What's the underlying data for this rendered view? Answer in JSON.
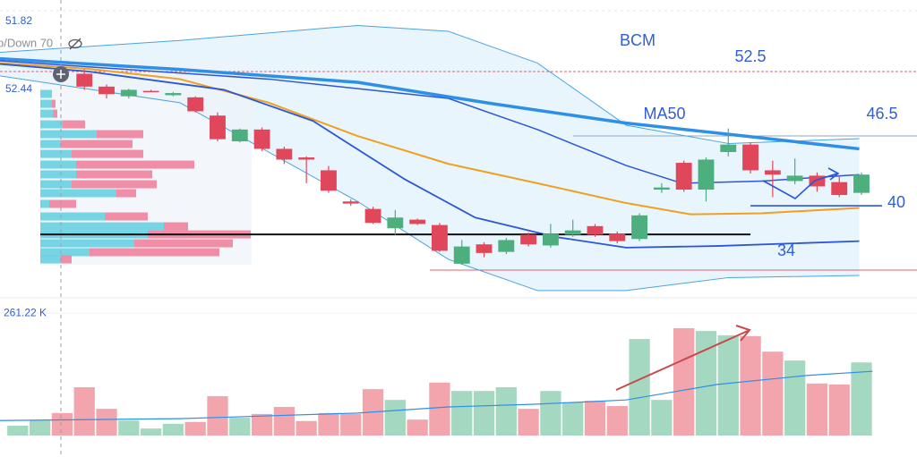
{
  "chart_data": [
    {
      "type": "candlestick",
      "xlim": [
        -3.8,
        37.5
      ],
      "ylim": [
        31.67,
        59.17
      ],
      "up_color": "#4caf7d",
      "down_color": "#e0475a",
      "open": [
        52.3,
        51.1,
        50.2,
        50.7,
        50.3,
        50.1,
        48.4,
        46.0,
        47.1,
        45.3,
        44.5,
        43.3,
        40.4,
        39.7,
        37.9,
        38.7,
        38.2,
        34.6,
        36.4,
        35.7,
        37.3,
        36.3,
        37.3,
        38.1,
        37.4,
        36.9,
        41.5,
        44.0,
        41.5,
        45.0,
        45.7,
        43.3,
        42.3,
        42.8,
        42.2,
        41.2
      ],
      "high": [
        52.7,
        51.3,
        50.9,
        50.8,
        50.6,
        50.2,
        48.7,
        47.2,
        47.3,
        45.5,
        44.6,
        43.7,
        40.6,
        39.9,
        39.6,
        38.8,
        38.4,
        36.8,
        36.6,
        37.0,
        37.5,
        38.3,
        38.7,
        38.3,
        37.6,
        39.3,
        42.1,
        44.2,
        44.5,
        47.2,
        45.9,
        44.2,
        44.4,
        43.1,
        42.8,
        43.1
      ],
      "low": [
        50.8,
        50.0,
        50.0,
        50.6,
        50.2,
        48.7,
        46.0,
        45.9,
        45.1,
        43.9,
        42.1,
        41.2,
        40.0,
        38.3,
        37.3,
        38.2,
        35.7,
        34.5,
        35.2,
        35.5,
        36.2,
        36.1,
        37.1,
        37.1,
        36.5,
        36.7,
        41.2,
        41.3,
        40.4,
        44.6,
        43.0,
        40.8,
        42.0,
        41.3,
        40.8,
        41.0
      ],
      "close": [
        51.1,
        50.4,
        50.8,
        50.6,
        50.5,
        48.8,
        46.2,
        47.1,
        45.3,
        44.3,
        44.3,
        41.4,
        40.2,
        38.4,
        38.9,
        38.3,
        35.8,
        36.2,
        35.6,
        36.8,
        36.4,
        37.4,
        37.7,
        37.3,
        36.7,
        39.1,
        41.7,
        41.5,
        44.3,
        45.7,
        43.3,
        42.9,
        42.8,
        41.8,
        41.0,
        42.9
      ],
      "overlays": [
        {
          "color": "#4aa3e0",
          "width": 1,
          "x": [
            -3.8,
            4.3,
            12.3,
            16.4,
            20.4,
            24.4,
            29.0,
            34.9
          ],
          "values": [
            54.3,
            55.4,
            56.8,
            56.25,
            53.3,
            47.5,
            45.8,
            46.25
          ]
        },
        {
          "color": "#4aa3e0",
          "width": 1,
          "x": [
            -3.8,
            4.3,
            12.3,
            16.4,
            20.4,
            24.4,
            29.0,
            34.9
          ],
          "values": [
            52.1,
            49.6,
            40.4,
            35.0,
            32.1,
            32.1,
            33.3,
            33.5
          ]
        },
        {
          "color": "#f0a020",
          "width": 2,
          "x": [
            -3.8,
            0.2,
            4.3,
            8.3,
            12.3,
            16.4,
            20.4,
            24.4,
            27.3,
            30.5,
            34.9
          ],
          "values": [
            53.3,
            52.75,
            51.8,
            49.6,
            46.5,
            43.9,
            42.1,
            40.25,
            39.2,
            39.3,
            39.8
          ]
        },
        {
          "color": "#2b56d8",
          "width": 1.8,
          "x": [
            -3.8,
            0.2,
            6.3,
            10.3,
            14.4,
            17.6,
            21.2,
            24.4,
            28.5,
            34.9
          ],
          "values": [
            53.2,
            52.5,
            50.8,
            47.9,
            42.5,
            38.9,
            37.1,
            36.1,
            36.25,
            36.7
          ]
        },
        {
          "color": "#2b56d8",
          "width": 1.5,
          "x": [
            -3.8,
            8.3,
            16.4,
            20.4,
            24.4,
            26.9,
            30.5,
            34.9
          ],
          "values": [
            53.5,
            51.8,
            50.0,
            47.1,
            43.75,
            42.1,
            42.3,
            42.9
          ]
        },
        {
          "color": "#2e8fe6",
          "width": 3.5,
          "x": [
            -3.8,
            4.3,
            12.3,
            18.4,
            24.4,
            29.7,
            34.9
          ],
          "values": [
            53.7,
            52.7,
            51.5,
            49.5,
            47.7,
            46.5,
            45.3
          ]
        }
      ],
      "levels": [
        {
          "value": 52.5,
          "color": "#e06070"
        },
        {
          "value": 46.5,
          "color": "#8fa6c8"
        },
        {
          "value": 40,
          "color": "#2b56d8"
        },
        {
          "value": 34,
          "color": "#e06070"
        }
      ],
      "poc": 37.33,
      "volume_profile": {
        "prices": [
          50.42,
          49.5,
          48.58,
          47.58,
          46.67,
          45.75,
          44.83,
          43.83,
          42.92,
          42.0,
          41.17,
          40.17,
          39.0,
          38.08,
          37.33,
          36.5,
          35.67,
          35.0
        ],
        "up": [
          13,
          13,
          14,
          25,
          63,
          23,
          35,
          40,
          40,
          35,
          85,
          10,
          72,
          138,
          120,
          105,
          55,
          23
        ],
        "down": [
          0,
          4,
          5,
          25,
          52,
          80,
          80,
          132,
          85,
          95,
          22,
          30,
          48,
          27,
          115,
          110,
          145,
          12
        ]
      },
      "annotations": [
        "BCM",
        "MA50"
      ],
      "indicator_labels": [
        "51.82",
        "p/Down 70",
        "52.44"
      ]
    },
    {
      "type": "volume",
      "ylim": [
        0,
        290
      ],
      "yticks": [
        {
          "value": 261.22,
          "label": "261.22 K"
        }
      ],
      "values": [
        21,
        32,
        48,
        103,
        57,
        32,
        15,
        25,
        29,
        84,
        38,
        46,
        61,
        31,
        48,
        46,
        99,
        76,
        34,
        113,
        95,
        95,
        103,
        57,
        95,
        71,
        74,
        63,
        206,
        76,
        229,
        223,
        214,
        212,
        179,
        160,
        111,
        109,
        156
      ],
      "colors": [
        "#a5d8c0",
        "#a5d8c0",
        "#f3a5ae",
        "#f3a5ae",
        "#f3a5ae",
        "#a5d8c0",
        "#a5d8c0",
        "#a5d8c0",
        "#f3a5ae",
        "#f3a5ae",
        "#a5d8c0",
        "#f3a5ae",
        "#f3a5ae",
        "#f3a5ae",
        "#f3a5ae",
        "#f3a5ae",
        "#f3a5ae",
        "#a5d8c0",
        "#f3a5ae",
        "#f3a5ae",
        "#a5d8c0",
        "#a5d8c0",
        "#a5d8c0",
        "#f3a5ae",
        "#a5d8c0",
        "#a5d8c0",
        "#f3a5ae",
        "#f3a5ae",
        "#a5d8c0",
        "#a5d8c0",
        "#f3a5ae",
        "#a5d8c0",
        "#a5d8c0",
        "#f3a5ae",
        "#f3a5ae",
        "#a5d8c0",
        "#f3a5ae",
        "#f3a5ae",
        "#a5d8c0"
      ],
      "ma": {
        "color": "#2e8fe6",
        "x": [
          -3.8,
          4.3,
          12.3,
          16.4,
          20.4,
          24.4,
          28.5,
          32.5,
          35.5
        ],
        "values": [
          32,
          36,
          48,
          61,
          67,
          76,
          109,
          128,
          137
        ]
      }
    }
  ]
}
